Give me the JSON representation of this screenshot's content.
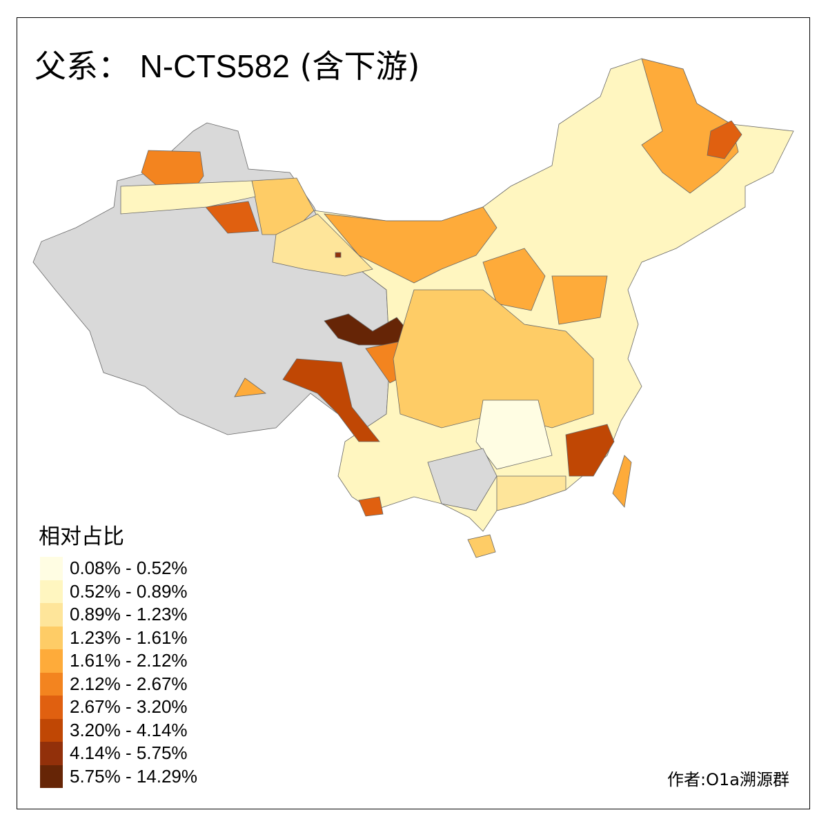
{
  "title": {
    "prefix": "父系：",
    "code": "N-CTS582",
    "suffix": "(含下游)"
  },
  "legend": {
    "title": "相对占比",
    "classes": [
      {
        "label": "0.08% - 0.52%",
        "color": "#fffde3"
      },
      {
        "label": "0.52% - 0.89%",
        "color": "#fff6c0"
      },
      {
        "label": "0.89% - 1.23%",
        "color": "#fee59a"
      },
      {
        "label": "1.23% - 1.61%",
        "color": "#fecc66"
      },
      {
        "label": "1.61% - 2.12%",
        "color": "#feab3a"
      },
      {
        "label": "2.12% - 2.67%",
        "color": "#f3841f"
      },
      {
        "label": "2.67% - 3.20%",
        "color": "#e06010"
      },
      {
        "label": "3.20% - 4.14%",
        "color": "#c04704"
      },
      {
        "label": "4.14% - 5.75%",
        "color": "#92300a"
      },
      {
        "label": "5.75% - 14.29%",
        "color": "#662506"
      }
    ],
    "no_data_color": "#d9d9d9"
  },
  "credit": "作者:O1a溯源群"
}
